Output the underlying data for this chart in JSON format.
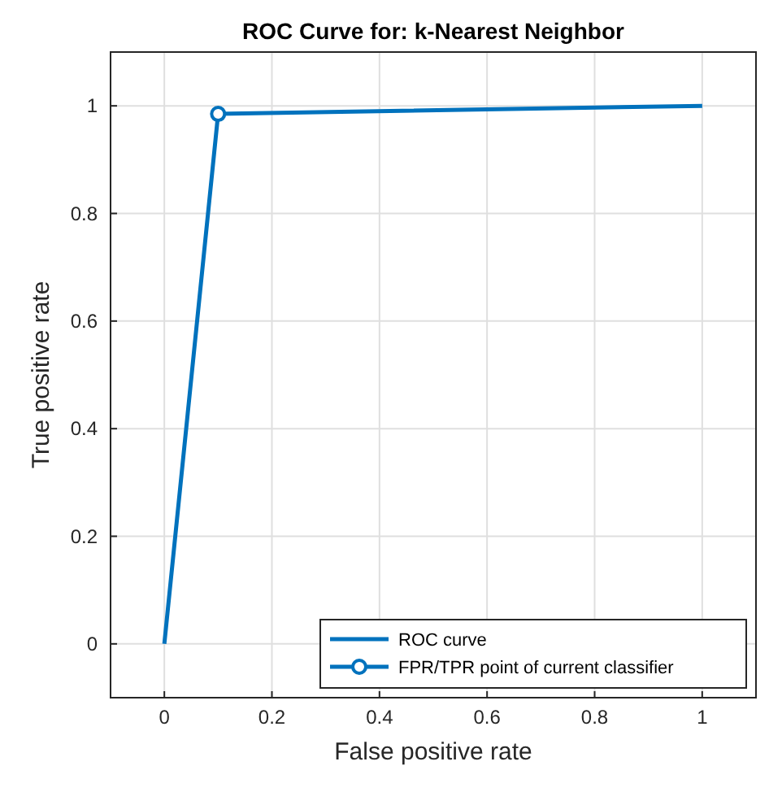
{
  "chart_data": {
    "type": "line",
    "title": "ROC Curve for: k-Nearest Neighbor",
    "xlabel": "False positive rate",
    "ylabel": "True positive rate",
    "xlim": [
      -0.1,
      1.1
    ],
    "xticks": [
      0,
      0.2,
      0.4,
      0.6,
      0.8,
      1
    ],
    "ylim": [
      -0.1,
      1.1
    ],
    "yticks": [
      0,
      0.2,
      0.4,
      0.6,
      0.8,
      1
    ],
    "grid": true,
    "legend": "bottom right",
    "series": [
      {
        "name": "ROC curve",
        "color": "#0072bd",
        "x": [
          0,
          0.1,
          1
        ],
        "values": [
          0,
          0.985,
          1
        ],
        "marker": "none"
      },
      {
        "name": "FPR/TPR point of current classifier",
        "color": "#0072bd",
        "x": [
          0.1
        ],
        "values": [
          0.985
        ],
        "marker": "circle"
      }
    ]
  }
}
